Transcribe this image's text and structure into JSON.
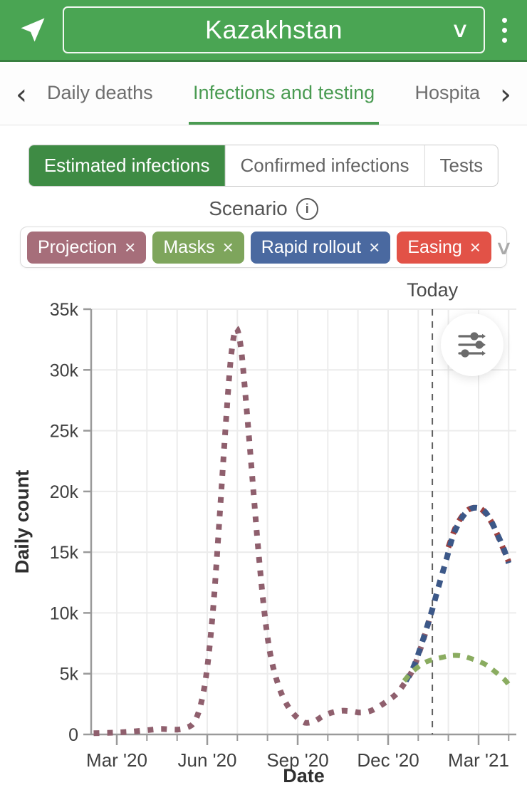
{
  "header": {
    "title": "Kazakhstan",
    "select_chevron": "∨",
    "bg_color": "#4aa553"
  },
  "tabbar": {
    "prev_glyph": "‹",
    "next_glyph": "›",
    "tabs": [
      {
        "label": "Daily deaths",
        "active": false
      },
      {
        "label": "Infections and testing",
        "active": true
      },
      {
        "label": "Hospita",
        "active": false
      }
    ],
    "active_color": "#4a9b52"
  },
  "view_toggle": {
    "options": [
      {
        "label": "Estimated infections",
        "active": true
      },
      {
        "label": "Confirmed infections",
        "active": false
      },
      {
        "label": "Tests",
        "active": false
      }
    ],
    "active_color": "#3e8b44"
  },
  "scenario": {
    "label": "Scenario",
    "info_glyph": "i",
    "close_glyph": "×",
    "dropdown_chevron": "∨",
    "chips": [
      {
        "label": "Projection",
        "color": "#a66e7a"
      },
      {
        "label": "Masks",
        "color": "#7ea55c"
      },
      {
        "label": "Rapid rollout",
        "color": "#4a69a0"
      },
      {
        "label": "Easing",
        "color": "#e25247"
      }
    ]
  },
  "chart_data": {
    "type": "line",
    "xlabel": "Date",
    "ylabel": "Daily count",
    "ylim": [
      0,
      35000
    ],
    "grid": true,
    "today": {
      "date": "2021-01-15",
      "label": "Today"
    },
    "yticks": [
      {
        "value": 0,
        "label": "0"
      },
      {
        "value": 5000,
        "label": "5k"
      },
      {
        "value": 10000,
        "label": "10k"
      },
      {
        "value": 15000,
        "label": "15k"
      },
      {
        "value": 20000,
        "label": "20k"
      },
      {
        "value": 25000,
        "label": "25k"
      },
      {
        "value": 30000,
        "label": "30k"
      },
      {
        "value": 35000,
        "label": "35k"
      }
    ],
    "xticks": [
      {
        "date": "2020-03-01",
        "label": "Mar '20"
      },
      {
        "date": "2020-06-01",
        "label": "Jun '20"
      },
      {
        "date": "2020-09-01",
        "label": "Sep '20"
      },
      {
        "date": "2020-12-01",
        "label": "Dec '20"
      },
      {
        "date": "2021-03-01",
        "label": "Mar '21"
      }
    ],
    "xticks_minor": [
      "2020-03-01",
      "2020-04-01",
      "2020-05-01",
      "2020-06-01",
      "2020-07-01",
      "2020-08-01",
      "2020-09-01",
      "2020-10-01",
      "2020-11-01",
      "2020-12-01",
      "2021-01-01",
      "2021-02-01",
      "2021-03-01",
      "2021-04-01"
    ],
    "series": [
      {
        "name": "Projection",
        "color": "#8f5f6d",
        "points": [
          [
            "2020-02-08",
            100
          ],
          [
            "2020-02-20",
            130
          ],
          [
            "2020-03-01",
            160
          ],
          [
            "2020-03-15",
            230
          ],
          [
            "2020-04-01",
            350
          ],
          [
            "2020-04-15",
            450
          ],
          [
            "2020-05-01",
            400
          ],
          [
            "2020-05-10",
            550
          ],
          [
            "2020-05-18",
            1000
          ],
          [
            "2020-05-25",
            2600
          ],
          [
            "2020-06-01",
            5500
          ],
          [
            "2020-06-07",
            10500
          ],
          [
            "2020-06-13",
            17500
          ],
          [
            "2020-06-19",
            25000
          ],
          [
            "2020-06-24",
            30500
          ],
          [
            "2020-06-28",
            33000
          ],
          [
            "2020-07-01",
            33300
          ],
          [
            "2020-07-05",
            31500
          ],
          [
            "2020-07-10",
            27000
          ],
          [
            "2020-07-16",
            21000
          ],
          [
            "2020-07-22",
            15000
          ],
          [
            "2020-07-28",
            10000
          ],
          [
            "2020-08-04",
            6500
          ],
          [
            "2020-08-12",
            4000
          ],
          [
            "2020-08-20",
            2500
          ],
          [
            "2020-08-28",
            1600
          ],
          [
            "2020-09-05",
            1100
          ],
          [
            "2020-09-10",
            950
          ],
          [
            "2020-09-18",
            1100
          ],
          [
            "2020-09-26",
            1500
          ],
          [
            "2020-10-05",
            1800
          ],
          [
            "2020-10-15",
            1950
          ],
          [
            "2020-10-25",
            1900
          ],
          [
            "2020-11-03",
            1800
          ],
          [
            "2020-11-12",
            1900
          ],
          [
            "2020-11-20",
            2200
          ],
          [
            "2020-12-01",
            2800
          ],
          [
            "2020-12-10",
            3400
          ],
          [
            "2020-12-18",
            4300
          ],
          [
            "2020-12-26",
            5400
          ],
          [
            "2021-01-03",
            7000
          ],
          [
            "2021-01-09",
            8600
          ],
          [
            "2021-01-15",
            10300
          ]
        ]
      },
      {
        "name": "Easing",
        "color": "#9e4140",
        "points": [
          [
            "2021-02-01",
            15400
          ],
          [
            "2021-02-08",
            17000
          ],
          [
            "2021-02-15",
            18000
          ],
          [
            "2021-02-22",
            18550
          ],
          [
            "2021-03-01",
            18650
          ],
          [
            "2021-03-08",
            18200
          ],
          [
            "2021-03-15",
            17300
          ],
          [
            "2021-03-22",
            16000
          ],
          [
            "2021-03-29",
            14600
          ],
          [
            "2021-04-01",
            14200
          ]
        ]
      },
      {
        "name": "Rapid rollout",
        "color": "#3c5888",
        "points": [
          [
            "2020-12-15",
            3900
          ],
          [
            "2020-12-20",
            4600
          ],
          [
            "2020-12-26",
            5500
          ],
          [
            "2021-01-01",
            6600
          ],
          [
            "2021-01-08",
            8400
          ],
          [
            "2021-01-15",
            10300
          ],
          [
            "2021-01-22",
            12400
          ],
          [
            "2021-01-29",
            14400
          ],
          [
            "2021-02-05",
            16200
          ],
          [
            "2021-02-12",
            17500
          ],
          [
            "2021-02-19",
            18300
          ],
          [
            "2021-02-26",
            18650
          ],
          [
            "2021-03-05",
            18500
          ],
          [
            "2021-03-12",
            17800
          ],
          [
            "2021-03-19",
            16600
          ],
          [
            "2021-03-26",
            15300
          ],
          [
            "2021-04-01",
            14100
          ]
        ]
      },
      {
        "name": "Masks",
        "color": "#8aac60",
        "points": [
          [
            "2020-12-17",
            4400
          ],
          [
            "2020-12-23",
            5000
          ],
          [
            "2020-12-30",
            5500
          ],
          [
            "2021-01-07",
            5900
          ],
          [
            "2021-01-15",
            6150
          ],
          [
            "2021-01-25",
            6350
          ],
          [
            "2021-02-05",
            6500
          ],
          [
            "2021-02-15",
            6450
          ],
          [
            "2021-02-25",
            6200
          ],
          [
            "2021-03-07",
            5800
          ],
          [
            "2021-03-17",
            5200
          ],
          [
            "2021-03-27",
            4500
          ],
          [
            "2021-04-01",
            4100
          ]
        ]
      }
    ]
  }
}
